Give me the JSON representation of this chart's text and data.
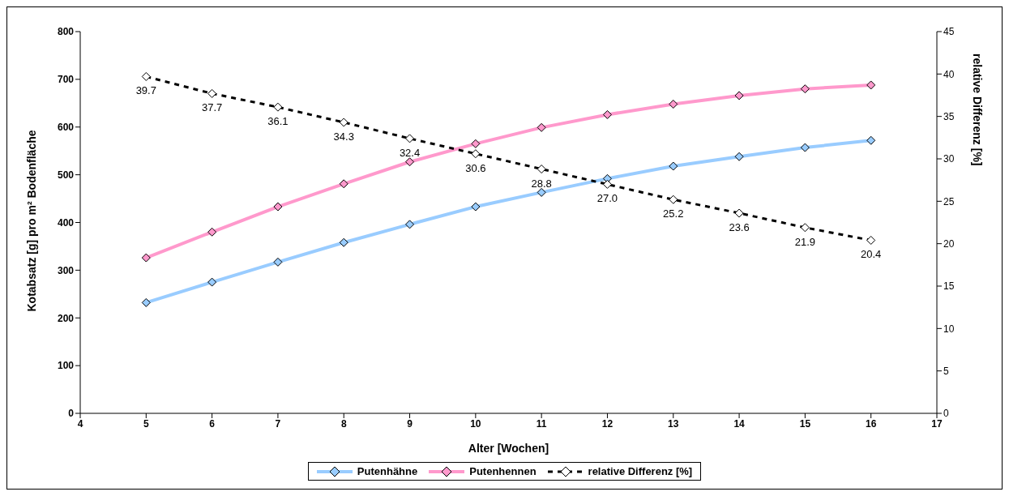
{
  "chart_data": {
    "type": "line",
    "xlabel": "Alter [Wochen]",
    "ylabel": "Kotabsatz [g] pro m² Bodenfläche",
    "y2label": "relative Differenz [%]",
    "x": [
      5,
      6,
      7,
      8,
      9,
      10,
      11,
      12,
      13,
      14,
      15,
      16
    ],
    "series": [
      {
        "name": "Putenhähne",
        "color": "#99ccff",
        "values": [
          232,
          275,
          317,
          358,
          396,
          433,
          463,
          492,
          518,
          538,
          557,
          572
        ]
      },
      {
        "name": "Putenhennen",
        "color": "#ff99cc",
        "values": [
          326,
          380,
          433,
          481,
          527,
          565,
          599,
          626,
          648,
          666,
          680,
          688
        ]
      },
      {
        "name": "relative Differenz [%]",
        "color": "#000000",
        "axis": "y2",
        "line_style": "dashed",
        "values": [
          39.7,
          37.7,
          36.1,
          34.3,
          32.4,
          30.6,
          28.8,
          27.0,
          25.2,
          23.6,
          21.9,
          20.4
        ],
        "value_labels": [
          "39.7",
          "37.7",
          "36.1",
          "34.3",
          "32.4",
          "30.6",
          "28.8",
          "27.0",
          "25.2",
          "23.6",
          "21.9",
          "20.4"
        ]
      }
    ],
    "xlim": [
      4,
      17
    ],
    "xticks": [
      4,
      5,
      6,
      7,
      8,
      9,
      10,
      11,
      12,
      13,
      14,
      15,
      16,
      17
    ],
    "ylim": [
      0,
      800
    ],
    "yticks": [
      0,
      100,
      200,
      300,
      400,
      500,
      600,
      700,
      800
    ],
    "y2lim": [
      0,
      45
    ],
    "y2ticks": [
      0,
      5,
      10,
      15,
      20,
      25,
      30,
      35,
      40,
      45
    ],
    "grid": false,
    "legend": "bottom",
    "marker": "diamond",
    "line_style": "solid"
  }
}
